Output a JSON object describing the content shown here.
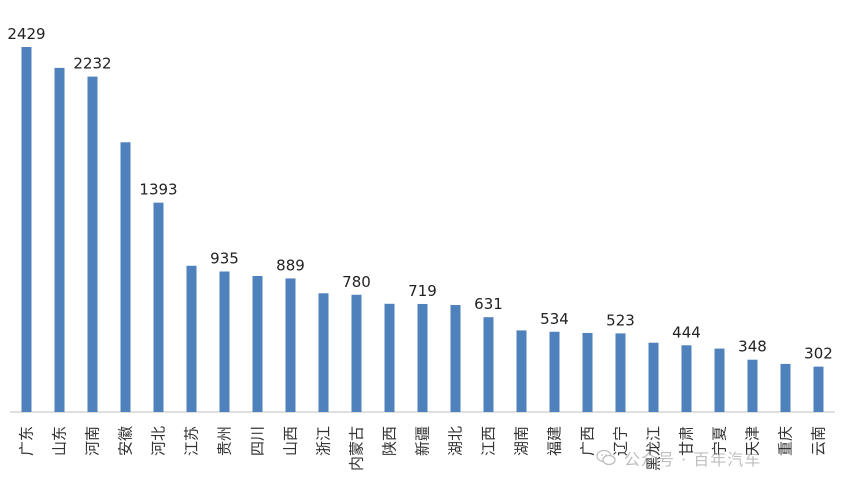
{
  "chart_data": {
    "type": "bar",
    "categories": [
      "广东",
      "山东",
      "河南",
      "安徽",
      "河北",
      "江苏",
      "贵州",
      "四川",
      "山西",
      "浙江",
      "内蒙古",
      "陕西",
      "新疆",
      "湖北",
      "江西",
      "湖南",
      "福建",
      "广西",
      "辽宁",
      "黑龙江",
      "甘肃",
      "宁夏",
      "天津",
      "重庆",
      "云南"
    ],
    "values": [
      2429,
      2290,
      2232,
      1795,
      1393,
      973,
      935,
      905,
      889,
      790,
      780,
      720,
      719,
      712,
      631,
      543,
      534,
      526,
      523,
      461,
      444,
      422,
      348,
      320,
      302
    ],
    "data_labels": [
      "2429",
      "",
      "2232",
      "",
      "1393",
      "",
      "935",
      "",
      "889",
      "",
      "780",
      "",
      "719",
      "",
      "631",
      "",
      "534",
      "",
      "523",
      "",
      "444",
      "",
      "348",
      "",
      "302"
    ],
    "ylim": [
      0,
      2429
    ],
    "grid": false,
    "legend": "none",
    "colors": {
      "bar": "#4f81bd",
      "axis": "#bfbfbf"
    }
  },
  "watermark": {
    "text": "公众号 · 百年汽车",
    "icon": "wechat-icon"
  }
}
